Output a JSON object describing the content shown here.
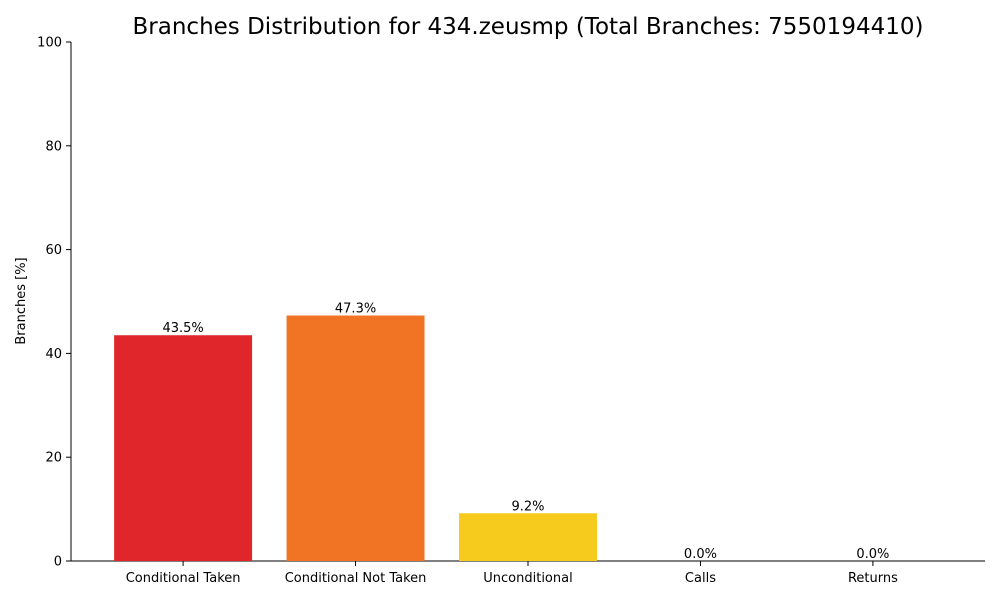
{
  "chart_data": {
    "type": "bar",
    "title": "Branches Distribution for 434.zeusmp (Total Branches: 7550194410)",
    "xlabel": "",
    "ylabel": "Branches [%]",
    "ylim": [
      0,
      100
    ],
    "yticks": [
      0,
      20,
      40,
      60,
      80,
      100
    ],
    "categories": [
      "Conditional Taken",
      "Conditional Not Taken",
      "Unconditional",
      "Calls",
      "Returns"
    ],
    "values": [
      43.5,
      47.3,
      9.2,
      0.0,
      0.0
    ],
    "value_labels": [
      "43.5%",
      "47.3%",
      "9.2%",
      "0.0%",
      "0.0%"
    ],
    "colors": [
      "#e0262a",
      "#f07424",
      "#f6cb1e",
      "#2e9a4a",
      "#2b6cb0"
    ],
    "grid": false,
    "legend": "none"
  }
}
